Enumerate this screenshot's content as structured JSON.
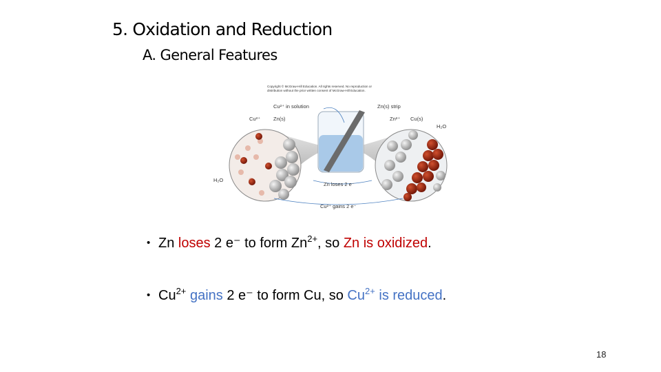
{
  "title": "5.  Oxidation and Reduction",
  "subtitle": "A. General Features",
  "figure": {
    "copyright": [
      "Copyright © McGraw-Hill Education. All rights reserved. No reproduction or",
      "distribution without the prior written consent of McGraw-Hill Education."
    ],
    "labels": [
      "Cu²⁺  in solution",
      "Zn(s) strip",
      "Cu²⁺",
      "Zn(s)",
      "Zn²⁺",
      "Cu(s)",
      "H₂O",
      "H₂O",
      "Zn loses 2 e⁻",
      "Cu²⁺ gains 2 e⁻"
    ]
  },
  "bullets": [
    {
      "marker": "•",
      "runs": [
        {
          "text": "Zn ",
          "color": "#000000"
        },
        {
          "text": "loses",
          "color": "#c00000"
        },
        {
          "text": " 2 e⁻ to form Zn",
          "color": "#000000"
        },
        {
          "text": "2+",
          "color": "#000000",
          "sup": true
        },
        {
          "text": ", so ",
          "color": "#000000"
        },
        {
          "text": "Zn is oxidized",
          "color": "#c00000"
        },
        {
          "text": ".",
          "color": "#000000"
        }
      ]
    },
    {
      "marker": "•",
      "runs": [
        {
          "text": "Cu",
          "color": "#000000"
        },
        {
          "text": "2+",
          "color": "#000000",
          "sup": true
        },
        {
          "text": " ",
          "color": "#000000"
        },
        {
          "text": "gains",
          "color": "#4472c4"
        },
        {
          "text": " 2 e⁻ to form Cu, so ",
          "color": "#000000"
        },
        {
          "text": "Cu",
          "color": "#4472c4"
        },
        {
          "text": "2+",
          "color": "#4472c4",
          "sup": true
        },
        {
          "text": " is reduced",
          "color": "#4472c4"
        },
        {
          "text": ".",
          "color": "#000000"
        }
      ]
    }
  ],
  "page_number": "18"
}
